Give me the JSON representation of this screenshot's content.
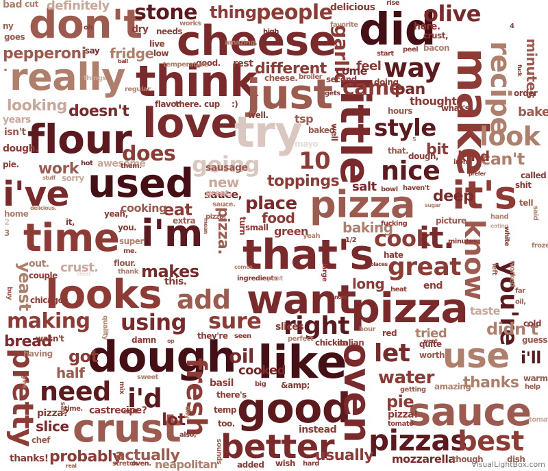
{
  "palette": {
    "c1": "#5c1a1e",
    "c2": "#7a2a2a",
    "c3": "#8e3b35",
    "c4": "#9c5b4e",
    "c5": "#b07f6c",
    "c6": "#c9a89b",
    "c7": "#d9c7c0",
    "c8": "#e6dcd8",
    "c9": "#451015"
  },
  "credit": "VisualLightBox.com",
  "words": [
    {
      "t": "don't",
      "c": "c4"
    },
    {
      "t": "cheese",
      "c": "c2"
    },
    {
      "t": "did",
      "c": "c9"
    },
    {
      "t": "really",
      "c": "c5"
    },
    {
      "t": "think",
      "c": "c2"
    },
    {
      "t": "just",
      "c": "c4"
    },
    {
      "t": "make",
      "c": "c3"
    },
    {
      "t": "recipe",
      "c": "c5"
    },
    {
      "t": "love",
      "c": "c2"
    },
    {
      "t": "try",
      "c": "c7"
    },
    {
      "t": "flour",
      "c": "c1"
    },
    {
      "t": "little",
      "c": "c2"
    },
    {
      "t": "used",
      "c": "c9"
    },
    {
      "t": "i've",
      "c": "c2"
    },
    {
      "t": "pizza",
      "c": "c4"
    },
    {
      "t": "it's",
      "c": "c3"
    },
    {
      "t": "time",
      "c": "c3"
    },
    {
      "t": "i'm",
      "c": "c1"
    },
    {
      "t": "that's",
      "c": "c2"
    },
    {
      "t": "looks",
      "c": "c3"
    },
    {
      "t": "want",
      "c": "c2"
    },
    {
      "t": "pizza",
      "c": "c2"
    },
    {
      "t": "dough",
      "c": "c9"
    },
    {
      "t": "like",
      "c": "c9"
    },
    {
      "t": "good",
      "c": "c1"
    },
    {
      "t": "sauce",
      "c": "c4"
    },
    {
      "t": "crust",
      "c": "c4"
    },
    {
      "t": "better",
      "c": "c2"
    },
    {
      "t": "pizzas",
      "c": "c1"
    },
    {
      "t": "best",
      "c": "c3"
    },
    {
      "t": "oven",
      "c": "c2"
    },
    {
      "t": "know",
      "c": "c4"
    },
    {
      "t": "you're",
      "c": "c1"
    },
    {
      "t": "use",
      "c": "c5"
    },
    {
      "t": "pretty",
      "c": "c3"
    },
    {
      "t": "need",
      "c": "c1"
    },
    {
      "t": "look",
      "c": "c5"
    },
    {
      "t": "nice",
      "c": "c1"
    },
    {
      "t": "way",
      "c": "c1"
    },
    {
      "t": "people",
      "c": "c3"
    },
    {
      "t": "stone",
      "c": "c1"
    },
    {
      "t": "thing",
      "c": "c3"
    },
    {
      "t": "olive",
      "c": "c2"
    },
    {
      "t": "garlic",
      "c": "c3"
    },
    {
      "t": "style",
      "c": "c1"
    },
    {
      "t": "great",
      "c": "c3"
    },
    {
      "t": "add",
      "c": "c4"
    },
    {
      "t": "making",
      "c": "c3"
    },
    {
      "t": "using",
      "c": "c2"
    },
    {
      "t": "sure",
      "c": "c3"
    },
    {
      "t": "right",
      "c": "c1"
    },
    {
      "t": "let",
      "c": "c2"
    },
    {
      "t": "i'd",
      "c": "c1"
    },
    {
      "t": "fresh",
      "c": "c3"
    },
    {
      "t": "oil",
      "c": "c2"
    },
    {
      "t": "cook",
      "c": "c3"
    },
    {
      "t": "it.",
      "c": "c2"
    },
    {
      "t": "place",
      "c": "c2"
    },
    {
      "t": "going",
      "c": "c7"
    },
    {
      "t": "does",
      "c": "c3"
    },
    {
      "t": "work",
      "c": "c4"
    },
    {
      "t": "definitely",
      "c": "c6"
    },
    {
      "t": "pepperoni",
      "c": "c4"
    },
    {
      "t": "looking",
      "c": "c6"
    },
    {
      "t": "doesn't",
      "c": "c2"
    },
    {
      "t": "makes",
      "c": "c2"
    },
    {
      "t": "yeast",
      "c": "c5"
    },
    {
      "t": "crust.",
      "c": "c6"
    },
    {
      "t": "got",
      "c": "c3"
    },
    {
      "t": "half",
      "c": "c4"
    },
    {
      "t": "probably",
      "c": "c3"
    },
    {
      "t": "actually",
      "c": "c4"
    },
    {
      "t": "slice",
      "c": "c2"
    },
    {
      "t": "bread",
      "c": "c2"
    },
    {
      "t": "water",
      "c": "c3"
    },
    {
      "t": "thanks",
      "c": "c5"
    },
    {
      "t": "i'll",
      "c": "c1"
    },
    {
      "t": "didn't",
      "c": "c5"
    },
    {
      "t": "can't",
      "c": "c5"
    },
    {
      "t": "different",
      "c": "c3"
    },
    {
      "t": "pan",
      "c": "c2"
    },
    {
      "t": "thought",
      "c": "c3"
    },
    {
      "t": "toppings",
      "c": "c3"
    },
    {
      "t": "bake",
      "c": "c4"
    },
    {
      "t": "minutes",
      "c": "c4"
    },
    {
      "t": "mozzarella",
      "c": "c2"
    },
    {
      "t": "usually",
      "c": "c3"
    },
    {
      "t": "neapolitan",
      "c": "c5"
    },
    {
      "t": "deep",
      "c": "c2"
    },
    {
      "t": "baking",
      "c": "c5"
    },
    {
      "t": "food",
      "c": "c3"
    },
    {
      "t": "long",
      "c": "c3"
    },
    {
      "t": "tried",
      "c": "c5"
    },
    {
      "t": "taste",
      "c": "c6"
    },
    {
      "t": "lot",
      "c": "c2"
    },
    {
      "t": "pie",
      "c": "c3"
    },
    {
      "t": "cooked",
      "c": "c2"
    },
    {
      "t": "eat",
      "c": "c3"
    },
    {
      "t": "cooking",
      "c": "c4"
    },
    {
      "t": "new",
      "c": "c6"
    },
    {
      "t": "sauce,",
      "c": "c2"
    },
    {
      "t": "bit",
      "c": "c3"
    },
    {
      "t": "kind",
      "c": "c3"
    },
    {
      "t": "salt",
      "c": "c2"
    },
    {
      "t": "feel",
      "c": "c3"
    },
    {
      "t": "come",
      "c": "c2"
    },
    {
      "t": "rest",
      "c": "c3"
    },
    {
      "t": "good.",
      "c": "c3"
    },
    {
      "t": "fridge",
      "c": "c5"
    },
    {
      "t": "say",
      "c": "c2"
    },
    {
      "t": "dry",
      "c": "c3"
    },
    {
      "t": "needs",
      "c": "c3"
    },
    {
      "t": "works",
      "c": "c5"
    },
    {
      "t": "amazing.",
      "c": "c5"
    },
    {
      "t": "high",
      "c": "c2"
    },
    {
      "t": "delicious",
      "c": "c3"
    },
    {
      "t": "rise",
      "c": "c3"
    },
    {
      "t": "here.",
      "c": "c3"
    },
    {
      "t": "crust,",
      "c": "c3"
    },
    {
      "t": "bacon",
      "c": "c5"
    },
    {
      "t": "peel",
      "c": "c3"
    },
    {
      "t": "start",
      "c": "c3"
    },
    {
      "t": "doing",
      "c": "c3"
    },
    {
      "t": "gets",
      "c": "c3"
    },
    {
      "t": "second",
      "c": "c3"
    },
    {
      "t": "broiler",
      "c": "c4"
    },
    {
      "t": "cheese.",
      "c": "c4"
    },
    {
      "t": "tsp",
      "c": "c4"
    },
    {
      "t": "baked",
      "c": "c4"
    },
    {
      "t": "well.",
      "c": "c3"
    },
    {
      "t": "live",
      "c": "c3"
    },
    {
      "t": "low",
      "c": "c3"
    },
    {
      "t": "temperature",
      "c": "c5"
    },
    {
      "t": "ball",
      "c": "c3"
    },
    {
      "t": "regular",
      "c": "c5"
    },
    {
      "t": "things",
      "c": "c6"
    },
    {
      "t": "years",
      "c": "c6"
    },
    {
      "t": "isn't",
      "c": "c4"
    },
    {
      "t": "dough.",
      "c": "c3"
    },
    {
      "t": "pie.",
      "c": "c3"
    },
    {
      "t": "hot",
      "c": "c2"
    },
    {
      "t": "awesome",
      "c": "c6"
    },
    {
      "t": "them.",
      "c": "c3"
    },
    {
      "t": "sorry",
      "c": "c6"
    },
    {
      "t": "stuff",
      "c": "c5"
    },
    {
      "t": "delicious.",
      "c": "c5"
    },
    {
      "t": "home",
      "c": "c5"
    },
    {
      "t": "it,",
      "c": "c3"
    },
    {
      "t": "yeah,",
      "c": "c3"
    },
    {
      "t": "you.",
      "c": "c3"
    },
    {
      "t": "super",
      "c": "c5"
    },
    {
      "t": "me.",
      "c": "c3"
    },
    {
      "t": "flour.",
      "c": "c4"
    },
    {
      "t": "thank",
      "c": "c5"
    },
    {
      "t": "out.",
      "c": "c5"
    },
    {
      "t": "couple",
      "c": "c3"
    },
    {
      "t": "this.",
      "c": "c3"
    },
    {
      "t": "chicago",
      "c": "c3"
    },
    {
      "t": "damn",
      "c": "c3"
    },
    {
      "t": "wasn't",
      "c": "c3"
    },
    {
      "t": "having",
      "c": "c5"
    },
    {
      "t": "quality",
      "c": "c5"
    },
    {
      "t": "sweet",
      "c": "c5"
    },
    {
      "t": "mix",
      "c": "c3"
    },
    {
      "t": "pizza?",
      "c": "c3"
    },
    {
      "t": "time.",
      "c": "c3"
    },
    {
      "t": "castrecipe?",
      "c": "c3"
    },
    {
      "t": "edit:",
      "c": "c3"
    },
    {
      "t": "also,",
      "c": "c3"
    },
    {
      "t": "temp",
      "c": "c3"
    },
    {
      "t": "too.",
      "c": "c3"
    },
    {
      "t": "instead",
      "c": "c3"
    },
    {
      "t": "added",
      "c": "c3"
    },
    {
      "t": "wish",
      "c": "c3"
    },
    {
      "t": "hard",
      "c": "c3"
    },
    {
      "t": "sounds",
      "c": "c4"
    },
    {
      "t": "thanks!",
      "c": "c3"
    },
    {
      "t": "chef",
      "c": "c4"
    },
    {
      "t": "stretch",
      "c": "c4"
    },
    {
      "t": "oven.",
      "c": "c3"
    },
    {
      "t": "they're",
      "c": "c3"
    },
    {
      "t": "seen",
      "c": "c3"
    },
    {
      "t": "chicken",
      "c": "c3"
    },
    {
      "t": "italian",
      "c": "c3"
    },
    {
      "t": "red",
      "c": "c3"
    },
    {
      "t": "quite",
      "c": "c3"
    },
    {
      "t": "worth",
      "c": "c4"
    },
    {
      "t": "went",
      "c": "c3"
    },
    {
      "t": "cold",
      "c": "c3"
    },
    {
      "t": "guess",
      "c": "c4"
    },
    {
      "t": "warm",
      "c": "c4"
    },
    {
      "t": "help",
      "c": "c4"
    },
    {
      "t": "tomatoes",
      "c": "c6"
    },
    {
      "t": "though",
      "c": "c4"
    },
    {
      "t": "dish",
      "c": "c4"
    },
    {
      "t": "amazing",
      "c": "c5"
    },
    {
      "t": "getting",
      "c": "c4"
    },
    {
      "t": "pizza!",
      "c": "c3"
    },
    {
      "t": "tomato",
      "c": "c3"
    },
    {
      "t": "basil",
      "c": "c3"
    },
    {
      "t": "there's",
      "c": "c3"
    },
    {
      "t": "&amp;",
      "c": "c3"
    },
    {
      "t": "big",
      "c": "c3"
    },
    {
      "t": "slices",
      "c": "c3"
    },
    {
      "t": "perfect",
      "c": "c5"
    },
    {
      "t": "ingredients",
      "c": "c3"
    },
    {
      "t": "post",
      "c": "c6"
    },
    {
      "t": "green",
      "c": "c3"
    },
    {
      "t": "small",
      "c": "c3"
    },
    {
      "t": "fucking",
      "c": "c3"
    },
    {
      "t": "picture",
      "c": "c4"
    },
    {
      "t": "sugar",
      "c": "c5"
    },
    {
      "t": "minutes.",
      "c": "c3"
    },
    {
      "t": "hate",
      "c": "c3"
    },
    {
      "t": "places",
      "c": "c3"
    },
    {
      "t": "heat",
      "c": "c3"
    },
    {
      "t": "end",
      "c": "c3"
    },
    {
      "t": "1/2",
      "c": "c3"
    },
    {
      "t": "yeah",
      "c": "c5"
    },
    {
      "t": "sauce.",
      "c": "c5"
    },
    {
      "t": "great.",
      "c": "c6"
    },
    {
      "t": "extra",
      "c": "c4"
    },
    {
      "t": "iron",
      "c": "c3"
    },
    {
      "t": "bowl",
      "c": "c3"
    },
    {
      "t": "haven't",
      "c": "c3"
    },
    {
      "t": "dough,",
      "c": "c3"
    },
    {
      "t": "that.",
      "c": "c4"
    },
    {
      "t": "called",
      "c": "c3"
    },
    {
      "t": "shit",
      "c": "c3"
    },
    {
      "t": "tell",
      "c": "c4"
    },
    {
      "t": "hand",
      "c": "c5"
    },
    {
      "t": "eating",
      "c": "c6"
    },
    {
      "t": "prefer",
      "c": "c3"
    },
    {
      "t": "what's",
      "c": "c3"
    },
    {
      "t": "hours",
      "c": "c4"
    },
    {
      "t": "order",
      "c": "c3"
    },
    {
      "t": "fuck",
      "c": "c3"
    },
    {
      "t": "flavor",
      "c": "c3"
    },
    {
      "t": "there.",
      "c": "c3"
    },
    {
      "t": "cup",
      "c": "c3"
    },
    {
      "t": ":)",
      "c": "c3"
    },
    {
      "t": "bad",
      "c": "c5"
    },
    {
      "t": "cut",
      "c": "c5"
    },
    {
      "t": "ny",
      "c": "c4"
    },
    {
      "t": "goes",
      "c": "c4"
    },
    {
      "t": "oh",
      "c": "c3"
    },
    {
      "t": "favorite",
      "c": "c5"
    },
    {
      "t": "worked",
      "c": "c5"
    },
    {
      "t": "left",
      "c": "c4"
    },
    {
      "t": "far",
      "c": "c4"
    },
    {
      "t": "oil,",
      "c": "c4"
    },
    {
      "t": "frozen",
      "c": "c5"
    },
    {
      "t": "said",
      "c": "c5"
    },
    {
      "t": "white",
      "c": "c3"
    },
    {
      "t": "buy",
      "c": "c4"
    },
    {
      "t": "3",
      "c": "c5"
    },
    {
      "t": "2",
      "c": "c7"
    },
    {
      "t": "10",
      "c": "c3"
    },
    {
      "t": "4",
      "c": "c3"
    },
    {
      "t": "5",
      "c": "c5"
    },
    {
      "t": "pizza,",
      "c": "c4"
    },
    {
      "t": "pizza.",
      "c": "c4"
    },
    {
      "t": "turn",
      "c": "c3"
    },
    {
      "t": "yes.",
      "c": "c5"
    },
    {
      "t": "*",
      "c": "c2"
    },
    {
      "t": "came",
      "c": "c3"
    },
    {
      "t": "large",
      "c": "c3"
    },
    {
      "t": "now.",
      "c": "c3"
    },
    {
      "t": "hour",
      "c": "c5"
    },
    {
      "t": "comes",
      "c": "c5"
    },
    {
      "t": "mean",
      "c": "c4"
    },
    {
      "t": "real",
      "c": "c4"
    },
    {
      "t": "day",
      "c": "c5"
    },
    {
      "t": "san",
      "c": "c4"
    },
    {
      "t": "op",
      "c": "c4"
    },
    {
      "t": "steel",
      "c": "c8"
    },
    {
      "t": "mayo",
      "c": "c8"
    },
    {
      "t": "sausage",
      "c": "c4"
    },
    {
      "t": "well",
      "c": "c3"
    }
  ]
}
